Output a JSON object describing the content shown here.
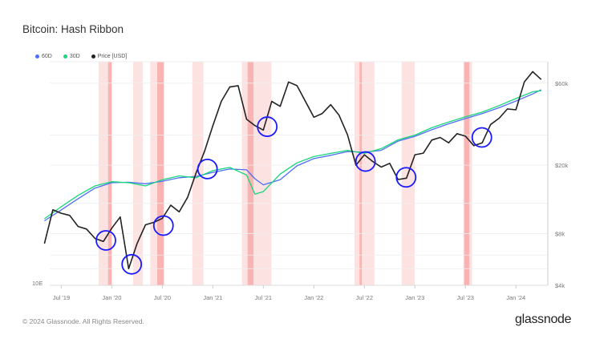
{
  "title": "Bitcoin: Hash Ribbon",
  "footer": "© 2024 Glassnode. All Rights Reserved.",
  "logo": "glassnode",
  "chart_data": {
    "type": "line",
    "title": "Bitcoin: Hash Ribbon",
    "legend_placement": "top-left",
    "grid": true,
    "x_ticks": [
      {
        "label": "Jul '19",
        "date": "2019-07-01"
      },
      {
        "label": "Jan '20",
        "date": "2020-01-01"
      },
      {
        "label": "Jul '20",
        "date": "2020-07-01"
      },
      {
        "label": "Jan '21",
        "date": "2021-01-01"
      },
      {
        "label": "Jul '21",
        "date": "2021-07-01"
      },
      {
        "label": "Jan '22",
        "date": "2022-01-01"
      },
      {
        "label": "Jul '22",
        "date": "2022-07-01"
      },
      {
        "label": "Jan '23",
        "date": "2023-01-01"
      },
      {
        "label": "Jul '23",
        "date": "2023-07-01"
      },
      {
        "label": "Jan '24",
        "date": "2024-01-01"
      }
    ],
    "xlim": [
      "2019-05-20",
      "2024-04-25"
    ],
    "price_axis": {
      "scale": "log",
      "side": "right",
      "ylim": [
        4000,
        80000
      ],
      "ticks": [
        {
          "label": "$4k",
          "value": 4000
        },
        {
          "label": "$8k",
          "value": 8000
        },
        {
          "label": "$20k",
          "value": 20000
        },
        {
          "label": "$60k",
          "value": 60000
        }
      ]
    },
    "hash_axis": {
      "scale": "log",
      "side": "left",
      "unit": "EH/s",
      "ylim": [
        19,
        908
      ],
      "ticks": [
        {
          "label": "10E",
          "value": 19
        }
      ]
    },
    "colors": {
      "60D": "#4f6ef7",
      "30D": "#18d67a",
      "price": "#222222",
      "band": "#fde2e2",
      "band_dark": "#f9b3b3",
      "circle": "#1a1aff"
    },
    "series": [
      {
        "name": "60D",
        "axis": "hash",
        "x": [
          "2019-05",
          "2019-07",
          "2019-09",
          "2019-11",
          "2020-01",
          "2020-03",
          "2020-05",
          "2020-07",
          "2020-09",
          "2020-11",
          "2021-01",
          "2021-03",
          "2021-05",
          "2021-06",
          "2021-07",
          "2021-09",
          "2021-11",
          "2022-01",
          "2022-03",
          "2022-05",
          "2022-07",
          "2022-09",
          "2022-11",
          "2023-01",
          "2023-03",
          "2023-05",
          "2023-07",
          "2023-09",
          "2023-11",
          "2024-01",
          "2024-03",
          "2024-04"
        ],
        "values": [
          58,
          70,
          85,
          102,
          112,
          113,
          110,
          115,
          122,
          125,
          134,
          142,
          140,
          120,
          108,
          118,
          150,
          170,
          180,
          192,
          190,
          196,
          230,
          250,
          280,
          310,
          340,
          370,
          410,
          460,
          520,
          560
        ]
      },
      {
        "name": "30D",
        "axis": "hash",
        "x": [
          "2019-05",
          "2019-07",
          "2019-09",
          "2019-11",
          "2020-01",
          "2020-03",
          "2020-05",
          "2020-07",
          "2020-09",
          "2020-11",
          "2021-01",
          "2021-03",
          "2021-05",
          "2021-06",
          "2021-07",
          "2021-09",
          "2021-11",
          "2022-01",
          "2022-03",
          "2022-05",
          "2022-07",
          "2022-09",
          "2022-11",
          "2023-01",
          "2023-03",
          "2023-05",
          "2023-07",
          "2023-09",
          "2023-11",
          "2024-01",
          "2024-03",
          "2024-04"
        ],
        "values": [
          60,
          74,
          90,
          106,
          114,
          112,
          106,
          118,
          126,
          122,
          138,
          146,
          128,
          92,
          96,
          130,
          158,
          176,
          186,
          196,
          186,
          202,
          235,
          255,
          290,
          320,
          350,
          380,
          425,
          480,
          540,
          550
        ]
      },
      {
        "name": "Price [USD]",
        "axis": "price",
        "x": [
          "2019-05",
          "2019-06",
          "2019-07",
          "2019-08",
          "2019-09",
          "2019-10",
          "2019-11",
          "2019-12",
          "2020-01",
          "2020-02",
          "2020-03",
          "2020-04",
          "2020-05",
          "2020-06",
          "2020-07",
          "2020-08",
          "2020-09",
          "2020-10",
          "2020-11",
          "2020-12",
          "2021-01",
          "2021-02",
          "2021-03",
          "2021-04",
          "2021-05",
          "2021-06",
          "2021-07",
          "2021-08",
          "2021-09",
          "2021-10",
          "2021-11",
          "2021-12",
          "2022-01",
          "2022-02",
          "2022-03",
          "2022-04",
          "2022-05",
          "2022-06",
          "2022-07",
          "2022-08",
          "2022-09",
          "2022-10",
          "2022-11",
          "2022-12",
          "2023-01",
          "2023-02",
          "2023-03",
          "2023-04",
          "2023-05",
          "2023-06",
          "2023-07",
          "2023-08",
          "2023-09",
          "2023-10",
          "2023-11",
          "2023-12",
          "2024-01",
          "2024-02",
          "2024-03",
          "2024-04"
        ],
        "values": [
          7000,
          11000,
          10500,
          10200,
          8800,
          8500,
          7500,
          7200,
          8600,
          10000,
          5000,
          7000,
          9000,
          9300,
          9800,
          11700,
          10700,
          13000,
          18000,
          24000,
          34000,
          47000,
          57000,
          58000,
          37000,
          34000,
          32000,
          47000,
          44000,
          61000,
          58000,
          47000,
          38000,
          40000,
          45000,
          39000,
          30000,
          20000,
          23000,
          21000,
          19500,
          20500,
          16500,
          16800,
          23000,
          23500,
          28000,
          29000,
          27000,
          30500,
          29500,
          26000,
          27000,
          34500,
          37500,
          42500,
          42000,
          61000,
          70000,
          63000
        ]
      }
    ],
    "bands": [
      {
        "start": "2019-11-14",
        "end": "2019-12-31",
        "dark_start": "2019-12-18",
        "dark_end": "2019-12-31"
      },
      {
        "start": "2020-03-17",
        "end": "2020-04-22"
      },
      {
        "start": "2020-05-18",
        "end": "2020-07-08",
        "dark_start": "2020-06-13",
        "dark_end": "2020-07-06"
      },
      {
        "start": "2020-10-18",
        "end": "2020-11-28"
      },
      {
        "start": "2021-04-15",
        "end": "2021-07-30",
        "dark_start": "2021-05-05",
        "dark_end": "2021-05-26"
      },
      {
        "start": "2022-05-26",
        "end": "2022-08-07",
        "dark_start": "2022-06-14",
        "dark_end": "2022-06-22"
      },
      {
        "start": "2022-11-14",
        "end": "2022-12-31"
      },
      {
        "start": "2023-06-24",
        "end": "2023-07-25",
        "dark_start": "2023-06-27",
        "dark_end": "2023-07-15"
      }
    ],
    "annotations": [
      {
        "type": "circle",
        "date": "2019-12-10",
        "price": 7300
      },
      {
        "type": "circle",
        "date": "2020-03-12",
        "price": 5300
      },
      {
        "type": "circle",
        "date": "2020-07-05",
        "price": 8900
      },
      {
        "type": "circle",
        "date": "2020-12-12",
        "price": 19000
      },
      {
        "type": "circle",
        "date": "2021-07-15",
        "price": 33500
      },
      {
        "type": "circle",
        "date": "2022-07-05",
        "price": 21000
      },
      {
        "type": "circle",
        "date": "2022-11-30",
        "price": 17000
      },
      {
        "type": "circle",
        "date": "2023-08-30",
        "price": 29000
      }
    ]
  }
}
